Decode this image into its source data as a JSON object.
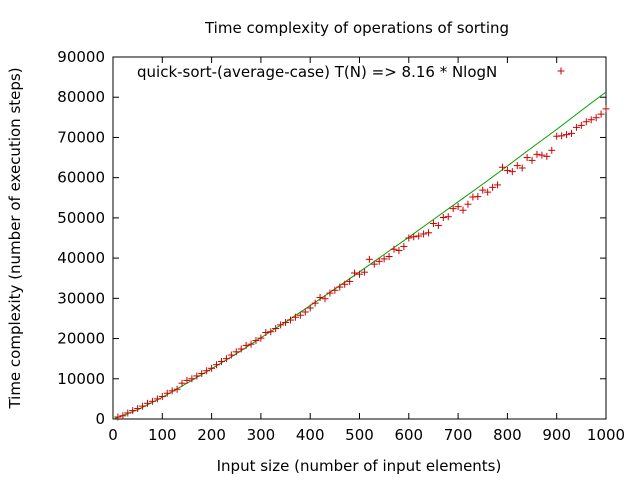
{
  "chart_data": {
    "type": "scatter",
    "title": "Time complexity of operations of sorting",
    "xlabel": "Input size (number of input elements)",
    "ylabel": "Time complexity (number of execution steps)",
    "xlim": [
      0,
      1000
    ],
    "ylim": [
      0,
      90000
    ],
    "x_ticks": [
      0,
      100,
      200,
      300,
      400,
      500,
      600,
      700,
      800,
      900,
      1000
    ],
    "y_ticks": [
      0,
      10000,
      20000,
      30000,
      40000,
      50000,
      60000,
      70000,
      80000,
      90000
    ],
    "grid": false,
    "legend_position": "top-right",
    "colors": {
      "points": "#cc0000",
      "fit": "#00a000",
      "axes": "#000000"
    },
    "series": [
      {
        "name": "quick-sort-(average-case) T(N) => 8.16 * NlogN",
        "marker": "plus",
        "x": [
          10,
          20,
          30,
          40,
          50,
          60,
          70,
          80,
          90,
          100,
          110,
          120,
          130,
          140,
          150,
          160,
          170,
          180,
          190,
          200,
          210,
          220,
          230,
          240,
          250,
          260,
          270,
          280,
          290,
          300,
          310,
          320,
          330,
          340,
          350,
          360,
          370,
          380,
          390,
          400,
          410,
          420,
          430,
          440,
          450,
          460,
          470,
          480,
          490,
          500,
          510,
          520,
          530,
          540,
          550,
          560,
          570,
          580,
          590,
          600,
          610,
          620,
          630,
          640,
          650,
          660,
          670,
          680,
          690,
          700,
          710,
          720,
          730,
          740,
          750,
          760,
          770,
          780,
          790,
          800,
          810,
          820,
          830,
          840,
          850,
          860,
          870,
          880,
          890,
          900,
          910,
          920,
          930,
          940,
          950,
          960,
          970,
          980,
          990,
          1000
        ],
        "y": [
          500,
          800,
          1500,
          2100,
          2600,
          3200,
          3900,
          4400,
          5000,
          5600,
          6400,
          7000,
          7400,
          8900,
          9600,
          10000,
          10700,
          11300,
          12000,
          12600,
          13500,
          14300,
          15000,
          15900,
          16700,
          17400,
          18300,
          18600,
          19500,
          20100,
          21500,
          21700,
          22500,
          23400,
          24000,
          24600,
          25300,
          25800,
          26600,
          27600,
          28800,
          30200,
          29900,
          31300,
          32000,
          32800,
          33500,
          34200,
          36300,
          36000,
          36500,
          39700,
          38500,
          39200,
          39800,
          40400,
          42200,
          41900,
          42900,
          45000,
          45300,
          45500,
          46000,
          46300,
          48600,
          48100,
          50100,
          50300,
          52300,
          52800,
          51900,
          53400,
          55200,
          55300,
          56900,
          56400,
          57600,
          58200,
          62600,
          61800,
          61500,
          63000,
          62400,
          65000,
          64300,
          65800,
          65600,
          65300,
          66800,
          70300,
          70400,
          70700,
          71000,
          72500,
          73000,
          73900,
          74400,
          74900,
          75800,
          77100
        ]
      }
    ],
    "fit_line": {
      "color": "#00a000",
      "x": [
        1,
        50,
        100,
        150,
        200,
        250,
        300,
        350,
        400,
        450,
        500,
        550,
        600,
        650,
        700,
        750,
        800,
        850,
        900,
        950,
        1000
      ],
      "y": [
        0,
        2300,
        5400,
        8900,
        12500,
        16200,
        20200,
        24100,
        28200,
        32300,
        36600,
        40900,
        45200,
        49600,
        54000,
        58400,
        62900,
        67500,
        72000,
        76700,
        81300
      ]
    }
  }
}
